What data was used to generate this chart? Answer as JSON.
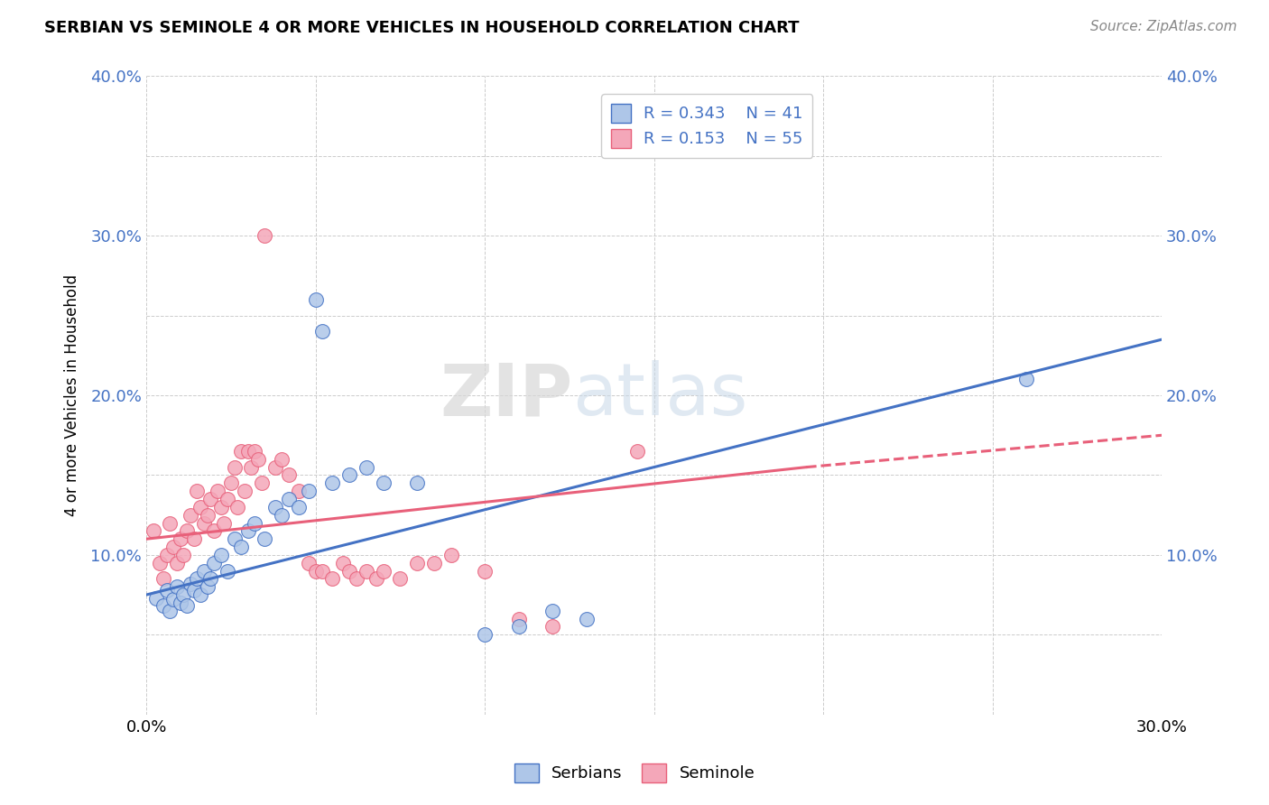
{
  "title": "SERBIAN VS SEMINOLE 4 OR MORE VEHICLES IN HOUSEHOLD CORRELATION CHART",
  "source": "Source: ZipAtlas.com",
  "ylabel": "4 or more Vehicles in Household",
  "xmin": 0.0,
  "xmax": 0.3,
  "ymin": 0.0,
  "ymax": 0.4,
  "xticks": [
    0.0,
    0.05,
    0.1,
    0.15,
    0.2,
    0.25,
    0.3
  ],
  "yticks": [
    0.0,
    0.05,
    0.1,
    0.15,
    0.2,
    0.25,
    0.3,
    0.35,
    0.4
  ],
  "serbian_color": "#aec6e8",
  "seminole_color": "#f4a7b9",
  "serbian_line_color": "#4472c4",
  "seminole_line_color": "#e8607a",
  "R_serbian": 0.343,
  "N_serbian": 41,
  "R_seminole": 0.153,
  "N_seminole": 55,
  "watermark_zip": "ZIP",
  "watermark_atlas": "atlas",
  "legend_serbian": "Serbians",
  "legend_seminole": "Seminole",
  "serbian_points": [
    [
      0.003,
      0.073
    ],
    [
      0.005,
      0.068
    ],
    [
      0.006,
      0.078
    ],
    [
      0.007,
      0.065
    ],
    [
      0.008,
      0.072
    ],
    [
      0.009,
      0.08
    ],
    [
      0.01,
      0.07
    ],
    [
      0.011,
      0.075
    ],
    [
      0.012,
      0.068
    ],
    [
      0.013,
      0.082
    ],
    [
      0.014,
      0.078
    ],
    [
      0.015,
      0.085
    ],
    [
      0.016,
      0.075
    ],
    [
      0.017,
      0.09
    ],
    [
      0.018,
      0.08
    ],
    [
      0.019,
      0.085
    ],
    [
      0.02,
      0.095
    ],
    [
      0.022,
      0.1
    ],
    [
      0.024,
      0.09
    ],
    [
      0.026,
      0.11
    ],
    [
      0.028,
      0.105
    ],
    [
      0.03,
      0.115
    ],
    [
      0.032,
      0.12
    ],
    [
      0.035,
      0.11
    ],
    [
      0.038,
      0.13
    ],
    [
      0.04,
      0.125
    ],
    [
      0.042,
      0.135
    ],
    [
      0.045,
      0.13
    ],
    [
      0.048,
      0.14
    ],
    [
      0.05,
      0.26
    ],
    [
      0.052,
      0.24
    ],
    [
      0.055,
      0.145
    ],
    [
      0.06,
      0.15
    ],
    [
      0.065,
      0.155
    ],
    [
      0.07,
      0.145
    ],
    [
      0.08,
      0.145
    ],
    [
      0.1,
      0.05
    ],
    [
      0.11,
      0.055
    ],
    [
      0.12,
      0.065
    ],
    [
      0.13,
      0.06
    ],
    [
      0.26,
      0.21
    ]
  ],
  "seminole_points": [
    [
      0.002,
      0.115
    ],
    [
      0.004,
      0.095
    ],
    [
      0.005,
      0.085
    ],
    [
      0.006,
      0.1
    ],
    [
      0.007,
      0.12
    ],
    [
      0.008,
      0.105
    ],
    [
      0.009,
      0.095
    ],
    [
      0.01,
      0.11
    ],
    [
      0.011,
      0.1
    ],
    [
      0.012,
      0.115
    ],
    [
      0.013,
      0.125
    ],
    [
      0.014,
      0.11
    ],
    [
      0.015,
      0.14
    ],
    [
      0.016,
      0.13
    ],
    [
      0.017,
      0.12
    ],
    [
      0.018,
      0.125
    ],
    [
      0.019,
      0.135
    ],
    [
      0.02,
      0.115
    ],
    [
      0.021,
      0.14
    ],
    [
      0.022,
      0.13
    ],
    [
      0.023,
      0.12
    ],
    [
      0.024,
      0.135
    ],
    [
      0.025,
      0.145
    ],
    [
      0.026,
      0.155
    ],
    [
      0.027,
      0.13
    ],
    [
      0.028,
      0.165
    ],
    [
      0.029,
      0.14
    ],
    [
      0.03,
      0.165
    ],
    [
      0.031,
      0.155
    ],
    [
      0.032,
      0.165
    ],
    [
      0.033,
      0.16
    ],
    [
      0.034,
      0.145
    ],
    [
      0.035,
      0.3
    ],
    [
      0.038,
      0.155
    ],
    [
      0.04,
      0.16
    ],
    [
      0.042,
      0.15
    ],
    [
      0.045,
      0.14
    ],
    [
      0.048,
      0.095
    ],
    [
      0.05,
      0.09
    ],
    [
      0.052,
      0.09
    ],
    [
      0.055,
      0.085
    ],
    [
      0.058,
      0.095
    ],
    [
      0.06,
      0.09
    ],
    [
      0.062,
      0.085
    ],
    [
      0.065,
      0.09
    ],
    [
      0.068,
      0.085
    ],
    [
      0.07,
      0.09
    ],
    [
      0.075,
      0.085
    ],
    [
      0.08,
      0.095
    ],
    [
      0.085,
      0.095
    ],
    [
      0.09,
      0.1
    ],
    [
      0.1,
      0.09
    ],
    [
      0.11,
      0.06
    ],
    [
      0.12,
      0.055
    ],
    [
      0.145,
      0.165
    ]
  ]
}
